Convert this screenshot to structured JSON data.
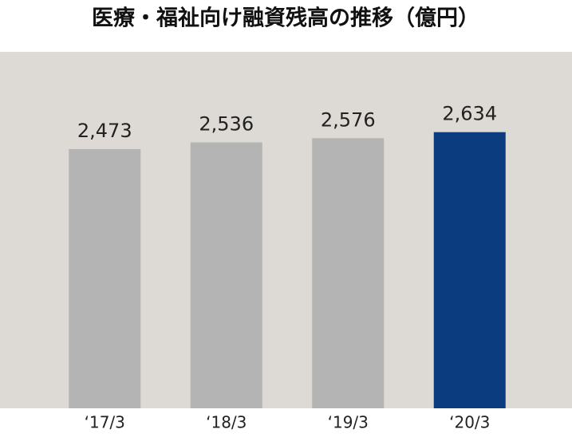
{
  "chart_data": {
    "type": "bar",
    "title": "医療・福祉向け融資残高の推移（億円）",
    "categories": [
      "‘17/3",
      "‘18/3",
      "‘19/3",
      "‘20/3"
    ],
    "values": [
      2473,
      2536,
      2576,
      2634
    ],
    "value_labels": [
      "2,473",
      "2,536",
      "2,576",
      "2,634"
    ],
    "colors": [
      "#b4b4b4",
      "#b4b4b4",
      "#b4b4b4",
      "#0c3c80"
    ],
    "ylim": [
      0,
      3400
    ]
  }
}
